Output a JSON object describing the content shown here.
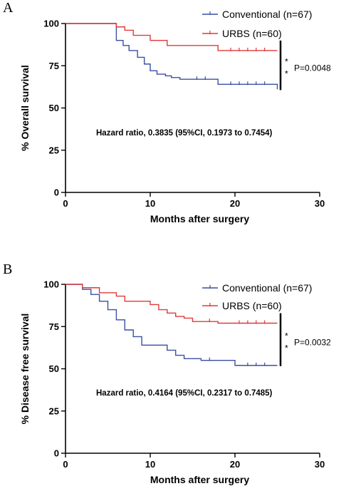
{
  "chart_data": [
    {
      "type": "line",
      "panel": "A",
      "xlabel": "Months after surgery",
      "ylabel": "% Overall survival",
      "xlim": [
        0,
        30
      ],
      "ylim": [
        0,
        100
      ],
      "xticks": [
        0,
        10,
        20,
        30
      ],
      "yticks": [
        0,
        25,
        50,
        75,
        100
      ],
      "legend_position": "top-right",
      "annotation": "Hazard ratio, 0.3835 (95%CI, 0.1973 to 0.7454)",
      "p_value": "P=0.0048",
      "significance": "**",
      "series": [
        {
          "name": "Conventional (n=67)",
          "color": "#3a4fa3",
          "step_x": [
            0,
            6,
            6.8,
            7.5,
            8.5,
            9.3,
            10,
            10.8,
            11.8,
            12.5,
            13.5,
            18,
            25
          ],
          "step_y": [
            100,
            90,
            87,
            84,
            80,
            76,
            72,
            70,
            69,
            68,
            67,
            64,
            61
          ],
          "censor_x": [
            15.5,
            16.5,
            19.5,
            20.5,
            21.5,
            22.5,
            23.5
          ],
          "end_x": 25
        },
        {
          "name": "URBS (n=60)",
          "color": "#e03a3a",
          "step_x": [
            0,
            6,
            7,
            8,
            10,
            12,
            18,
            25
          ],
          "step_y": [
            100,
            98,
            96,
            93,
            90,
            87,
            84,
            84
          ],
          "censor_x": [
            19.5,
            20.5,
            21.5,
            22.5,
            23.5
          ],
          "end_x": 25
        }
      ]
    },
    {
      "type": "line",
      "panel": "B",
      "xlabel": "Months after surgery",
      "ylabel": "% Disease free survival",
      "xlim": [
        0,
        30
      ],
      "ylim": [
        0,
        100
      ],
      "xticks": [
        0,
        10,
        20,
        30
      ],
      "yticks": [
        0,
        25,
        50,
        75,
        100
      ],
      "legend_position": "top-right",
      "annotation": "Hazard ratio, 0.4164 (95%CI, 0.2317 to 0.7485)",
      "p_value": "P=0.0032",
      "significance": "**",
      "series": [
        {
          "name": "Conventional (n=67)",
          "color": "#3a4fa3",
          "step_x": [
            0,
            2,
            3,
            4,
            5,
            6,
            7,
            8,
            9,
            10,
            12,
            13,
            14,
            16,
            20,
            25
          ],
          "step_y": [
            100,
            97,
            94,
            90,
            85,
            79,
            73,
            69,
            64,
            64,
            61,
            58,
            56,
            55,
            52,
            52
          ],
          "censor_x": [
            17,
            21.5,
            22.5,
            23.5
          ],
          "end_x": 25
        },
        {
          "name": "URBS (n=60)",
          "color": "#e03a3a",
          "step_x": [
            0,
            2,
            4,
            6,
            7,
            10,
            11,
            12,
            13,
            14,
            15,
            18,
            25
          ],
          "step_y": [
            100,
            98,
            95,
            93,
            90,
            88,
            85,
            83,
            81,
            80,
            78,
            77,
            77
          ],
          "censor_x": [
            17,
            20.5,
            21.5,
            22.5,
            23.5
          ],
          "end_x": 25
        }
      ]
    }
  ]
}
